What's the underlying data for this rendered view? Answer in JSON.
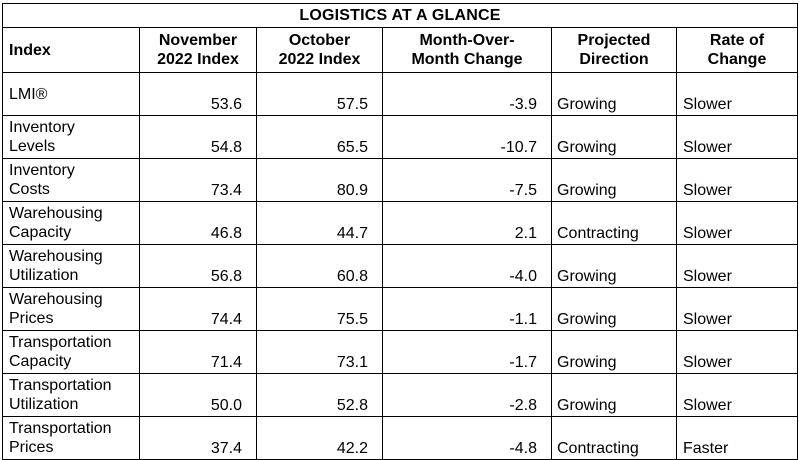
{
  "chart_data": {
    "type": "table",
    "title": "LOGISTICS AT A GLANCE",
    "columns": [
      "Index",
      "November 2022 Index",
      "October 2022 Index",
      "Month-Over-Month Change",
      "Projected Direction",
      "Rate of Change"
    ],
    "header_lines": [
      [
        "Index"
      ],
      [
        "November",
        "2022 Index"
      ],
      [
        "October",
        "2022 Index"
      ],
      [
        "Month-Over-",
        "Month Change"
      ],
      [
        "Projected",
        "Direction"
      ],
      [
        "Rate of",
        "Change"
      ]
    ],
    "rows": [
      {
        "index": [
          "LMI®"
        ],
        "nov": "53.6",
        "oct": "57.5",
        "change": "-3.9",
        "direction": "Growing",
        "rate": "Slower"
      },
      {
        "index": [
          "Inventory",
          "Levels"
        ],
        "nov": "54.8",
        "oct": "65.5",
        "change": "-10.7",
        "direction": "Growing",
        "rate": "Slower"
      },
      {
        "index": [
          "Inventory",
          "Costs"
        ],
        "nov": "73.4",
        "oct": "80.9",
        "change": "-7.5",
        "direction": "Growing",
        "rate": "Slower"
      },
      {
        "index": [
          "Warehousing",
          "Capacity"
        ],
        "nov": "46.8",
        "oct": "44.7",
        "change": "2.1",
        "direction": "Contracting",
        "rate": "Slower"
      },
      {
        "index": [
          "Warehousing",
          "Utilization"
        ],
        "nov": "56.8",
        "oct": "60.8",
        "change": "-4.0",
        "direction": "Growing",
        "rate": "Slower"
      },
      {
        "index": [
          "Warehousing",
          "Prices"
        ],
        "nov": "74.4",
        "oct": "75.5",
        "change": "-1.1",
        "direction": "Growing",
        "rate": "Slower"
      },
      {
        "index": [
          "Transportation",
          "Capacity"
        ],
        "nov": "71.4",
        "oct": "73.1",
        "change": "-1.7",
        "direction": "Growing",
        "rate": "Slower"
      },
      {
        "index": [
          "Transportation",
          "Utilization"
        ],
        "nov": "50.0",
        "oct": "52.8",
        "change": "-2.8",
        "direction": "Growing",
        "rate": "Slower"
      },
      {
        "index": [
          "Transportation",
          "Prices"
        ],
        "nov": "37.4",
        "oct": "42.2",
        "change": "-4.8",
        "direction": "Contracting",
        "rate": "Faster"
      }
    ]
  }
}
